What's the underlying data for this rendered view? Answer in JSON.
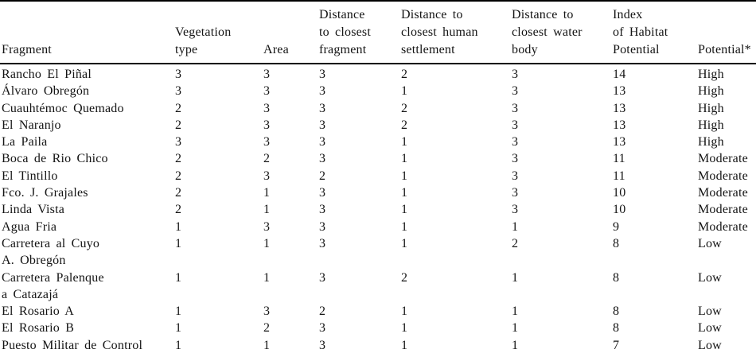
{
  "table": {
    "columns": [
      {
        "id": "fragment",
        "label_lines": [
          "Fragment"
        ]
      },
      {
        "id": "vegetation_type",
        "label_lines": [
          "Vegetation",
          "type"
        ]
      },
      {
        "id": "area",
        "label_lines": [
          "Area"
        ]
      },
      {
        "id": "dist_fragment",
        "label_lines": [
          "Distance",
          "to closest",
          "fragment"
        ]
      },
      {
        "id": "dist_settlement",
        "label_lines": [
          "Distance to",
          "closest human",
          "settlement"
        ]
      },
      {
        "id": "dist_water",
        "label_lines": [
          "Distance to",
          "closest water",
          "body"
        ]
      },
      {
        "id": "index_habitat",
        "label_lines": [
          "Index",
          "of Habitat",
          "Potential"
        ]
      },
      {
        "id": "potential",
        "label_lines": [
          "Potential*"
        ]
      }
    ],
    "rows": [
      {
        "fragment": "Rancho El Piñal",
        "vegetation_type": "3",
        "area": "3",
        "dist_fragment": "3",
        "dist_settlement": "2",
        "dist_water": "3",
        "index_habitat": "14",
        "potential": "High"
      },
      {
        "fragment": "Álvaro Obregón",
        "vegetation_type": "3",
        "area": "3",
        "dist_fragment": "3",
        "dist_settlement": "1",
        "dist_water": "3",
        "index_habitat": "13",
        "potential": "High"
      },
      {
        "fragment": "Cuauhtémoc Quemado",
        "vegetation_type": "2",
        "area": "3",
        "dist_fragment": "3",
        "dist_settlement": "2",
        "dist_water": "3",
        "index_habitat": "13",
        "potential": "High"
      },
      {
        "fragment": "El Naranjo",
        "vegetation_type": "2",
        "area": "3",
        "dist_fragment": "3",
        "dist_settlement": "2",
        "dist_water": "3",
        "index_habitat": "13",
        "potential": "High"
      },
      {
        "fragment": "La Paila",
        "vegetation_type": "3",
        "area": "3",
        "dist_fragment": "3",
        "dist_settlement": "1",
        "dist_water": "3",
        "index_habitat": "13",
        "potential": "High"
      },
      {
        "fragment": "Boca de Rio Chico",
        "vegetation_type": "2",
        "area": "2",
        "dist_fragment": "3",
        "dist_settlement": "1",
        "dist_water": "3",
        "index_habitat": "11",
        "potential": "Moderate"
      },
      {
        "fragment": "El Tintillo",
        "vegetation_type": "2",
        "area": "3",
        "dist_fragment": "2",
        "dist_settlement": "1",
        "dist_water": "3",
        "index_habitat": "11",
        "potential": "Moderate"
      },
      {
        "fragment": "Fco. J. Grajales",
        "vegetation_type": "2",
        "area": "1",
        "dist_fragment": "3",
        "dist_settlement": "1",
        "dist_water": "3",
        "index_habitat": "10",
        "potential": "Moderate"
      },
      {
        "fragment": "Linda Vista",
        "vegetation_type": "2",
        "area": "1",
        "dist_fragment": "3",
        "dist_settlement": "1",
        "dist_water": "3",
        "index_habitat": "10",
        "potential": "Moderate"
      },
      {
        "fragment": "Agua Fria",
        "vegetation_type": "1",
        "area": "3",
        "dist_fragment": "3",
        "dist_settlement": "1",
        "dist_water": "1",
        "index_habitat": "9",
        "potential": "Moderate"
      },
      {
        "fragment": [
          "Carretera al Cuyo",
          "A. Obregón"
        ],
        "vegetation_type": "1",
        "area": "1",
        "dist_fragment": "3",
        "dist_settlement": "1",
        "dist_water": "2",
        "index_habitat": "8",
        "potential": "Low"
      },
      {
        "fragment": [
          "Carretera Palenque",
          "a Catazajá"
        ],
        "vegetation_type": "1",
        "area": "1",
        "dist_fragment": "3",
        "dist_settlement": "2",
        "dist_water": "1",
        "index_habitat": "8",
        "potential": "Low"
      },
      {
        "fragment": "El Rosario A",
        "vegetation_type": "1",
        "area": "3",
        "dist_fragment": "2",
        "dist_settlement": "1",
        "dist_water": "1",
        "index_habitat": "8",
        "potential": "Low"
      },
      {
        "fragment": "El Rosario B",
        "vegetation_type": "1",
        "area": "2",
        "dist_fragment": "3",
        "dist_settlement": "1",
        "dist_water": "1",
        "index_habitat": "8",
        "potential": "Low"
      },
      {
        "fragment": "Puesto Militar de Control",
        "vegetation_type": "1",
        "area": "1",
        "dist_fragment": "3",
        "dist_settlement": "1",
        "dist_water": "1",
        "index_habitat": "7",
        "potential": "Low"
      }
    ]
  },
  "colors": {
    "text": "#141414",
    "rule": "#000000",
    "background": "#ffffff"
  }
}
